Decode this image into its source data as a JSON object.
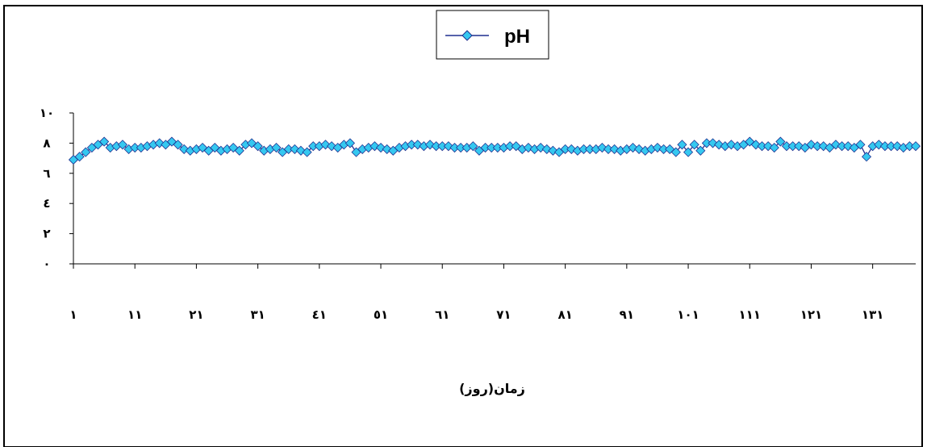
{
  "chart_data": {
    "type": "line",
    "title": "",
    "xlabel": "زمان(روز)",
    "ylabel": "",
    "ylim": [
      0,
      10
    ],
    "y_ticks": [
      "۰",
      "۲",
      "٤",
      "٦",
      "۸",
      "۱۰"
    ],
    "y_tick_values": [
      0,
      2,
      4,
      6,
      8,
      10
    ],
    "x_range": [
      1,
      138
    ],
    "x_tick_values": [
      1,
      11,
      21,
      31,
      41,
      51,
      61,
      71,
      81,
      91,
      101,
      111,
      121,
      131
    ],
    "x_tick_labels": [
      "۱",
      "۱۱",
      "۲۱",
      "۳۱",
      "٤۱",
      "٥۱",
      "٦۱",
      "۷۱",
      "۸۱",
      "۹۱",
      "۱۰۱",
      "۱۱۱",
      "۱۲۱",
      "۱۳۱"
    ],
    "grid": false,
    "legend_position": "top-center",
    "series": [
      {
        "name": "pH",
        "color": "#1f2f8f",
        "marker_color": "#35c8f0",
        "marker": "diamond",
        "x": [
          1,
          2,
          3,
          4,
          5,
          6,
          7,
          8,
          9,
          10,
          11,
          12,
          13,
          14,
          15,
          16,
          17,
          18,
          19,
          20,
          21,
          22,
          23,
          24,
          25,
          26,
          27,
          28,
          29,
          30,
          31,
          32,
          33,
          34,
          35,
          36,
          37,
          38,
          39,
          40,
          41,
          42,
          43,
          44,
          45,
          46,
          47,
          48,
          49,
          50,
          51,
          52,
          53,
          54,
          55,
          56,
          57,
          58,
          59,
          60,
          61,
          62,
          63,
          64,
          65,
          66,
          67,
          68,
          69,
          70,
          71,
          72,
          73,
          74,
          75,
          76,
          77,
          78,
          79,
          80,
          81,
          82,
          83,
          84,
          85,
          86,
          87,
          88,
          89,
          90,
          91,
          92,
          93,
          94,
          95,
          96,
          97,
          98,
          99,
          100,
          101,
          102,
          103,
          104,
          105,
          106,
          107,
          108,
          109,
          110,
          111,
          112,
          113,
          114,
          115,
          116,
          117,
          118,
          119,
          120,
          121,
          122,
          123,
          124,
          125,
          126,
          127,
          128,
          129,
          130,
          131,
          132,
          133,
          134,
          135,
          136,
          137,
          138
        ],
        "y": [
          6.9,
          7.1,
          7.4,
          7.7,
          7.9,
          8.1,
          7.7,
          7.8,
          7.9,
          7.6,
          7.7,
          7.7,
          7.8,
          7.9,
          8.0,
          7.9,
          8.1,
          7.9,
          7.6,
          7.5,
          7.6,
          7.7,
          7.5,
          7.7,
          7.5,
          7.6,
          7.7,
          7.5,
          7.9,
          8.0,
          7.8,
          7.5,
          7.6,
          7.7,
          7.4,
          7.6,
          7.6,
          7.5,
          7.4,
          7.8,
          7.8,
          7.9,
          7.8,
          7.7,
          7.9,
          8.0,
          7.4,
          7.6,
          7.7,
          7.8,
          7.7,
          7.6,
          7.5,
          7.7,
          7.8,
          7.9,
          7.9,
          7.8,
          7.9,
          7.8,
          7.8,
          7.8,
          7.7,
          7.7,
          7.7,
          7.8,
          7.5,
          7.7,
          7.7,
          7.7,
          7.7,
          7.8,
          7.8,
          7.6,
          7.7,
          7.6,
          7.7,
          7.6,
          7.5,
          7.4,
          7.6,
          7.6,
          7.5,
          7.6,
          7.6,
          7.6,
          7.7,
          7.6,
          7.6,
          7.5,
          7.6,
          7.7,
          7.6,
          7.5,
          7.6,
          7.7,
          7.6,
          7.6,
          7.4,
          7.9,
          7.4,
          7.9,
          7.5,
          8.0,
          8.0,
          7.9,
          7.8,
          7.9,
          7.8,
          7.9,
          8.1,
          7.9,
          7.8,
          7.8,
          7.7,
          8.1,
          7.8,
          7.8,
          7.8,
          7.7,
          7.9,
          7.8,
          7.8,
          7.7,
          7.9,
          7.8,
          7.8,
          7.7,
          7.9,
          7.1,
          7.8,
          7.9,
          7.8,
          7.8,
          7.8,
          7.7,
          7.8,
          7.8
        ]
      }
    ]
  }
}
